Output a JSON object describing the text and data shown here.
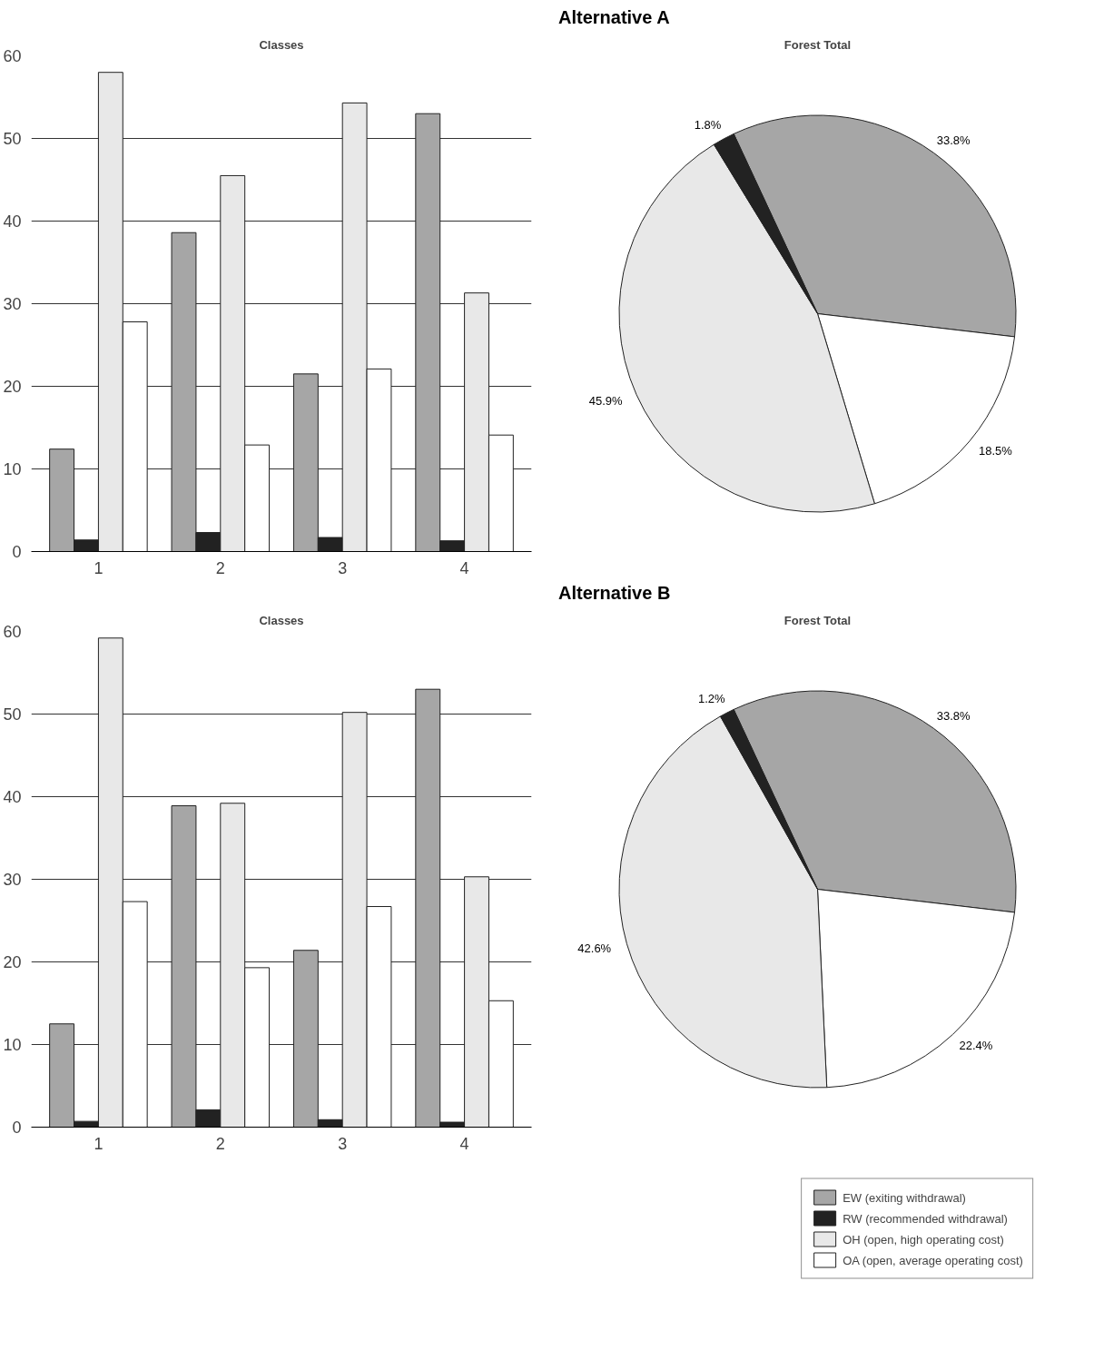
{
  "chart_data": [
    {
      "type": "bar",
      "title": "Classes",
      "categories": [
        "1",
        "2",
        "3",
        "4"
      ],
      "ylim": [
        0,
        60
      ],
      "yticks": [
        0,
        10,
        20,
        30,
        40,
        50,
        60
      ],
      "grid": "y",
      "series": [
        {
          "color": "#a6a6a6",
          "values": [
            12.4,
            38.6,
            21.5,
            53.0
          ]
        },
        {
          "color": "#222222",
          "values": [
            1.4,
            2.3,
            1.7,
            1.3
          ]
        },
        {
          "color": "#e8e8e8",
          "values": [
            58.0,
            45.5,
            54.3,
            31.3
          ]
        },
        {
          "color": "#ffffff",
          "values": [
            27.8,
            12.9,
            22.1,
            14.1
          ]
        }
      ]
    },
    {
      "type": "pie",
      "title": "Alternative A",
      "subtitle": "Forest Total",
      "categories": [
        null,
        null,
        null,
        null
      ],
      "values": [
        33.8,
        18.5,
        45.9,
        1.8
      ],
      "colors": [
        "#a6a6a6",
        "#ffffff",
        "#e8e8e8",
        "#222222"
      ],
      "value_labels": [
        "33.8%",
        "18.5%",
        "45.9%",
        "1.8%"
      ]
    },
    {
      "type": "bar",
      "title": "Classes",
      "categories": [
        "1",
        "2",
        "3",
        "4"
      ],
      "ylim": [
        0,
        60
      ],
      "yticks": [
        0,
        10,
        20,
        30,
        40,
        50,
        60
      ],
      "grid": "y",
      "legend": "bottom right",
      "series": [
        {
          "name": "EW (exiting withdrawal)",
          "color": "#a6a6a6",
          "values": [
            12.5,
            38.9,
            21.4,
            53.0
          ]
        },
        {
          "name": "RW (recommended withdrawal)",
          "color": "#222222",
          "values": [
            0.7,
            2.1,
            0.9,
            0.6
          ]
        },
        {
          "name": "OH (open, high operating cost)",
          "color": "#e8e8e8",
          "values": [
            59.2,
            39.2,
            50.2,
            30.3
          ]
        },
        {
          "name": "OA (open, average operating cost)",
          "color": "#ffffff",
          "values": [
            27.3,
            19.3,
            26.7,
            15.3
          ]
        }
      ]
    },
    {
      "type": "pie",
      "title": "Alternative B",
      "subtitle": "Forest Total",
      "categories": [
        null,
        null,
        null,
        null
      ],
      "values": [
        33.8,
        22.4,
        42.6,
        1.2
      ],
      "colors": [
        "#a6a6a6",
        "#ffffff",
        "#e8e8e8",
        "#222222"
      ],
      "value_labels": [
        "33.8%",
        "22.4%",
        "42.6%",
        "1.2%"
      ]
    }
  ]
}
